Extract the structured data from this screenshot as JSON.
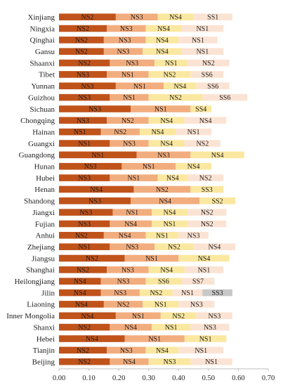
{
  "chart_data": {
    "type": "bar",
    "orientation": "horizontal",
    "stacked": true,
    "xlim": [
      0,
      0.7
    ],
    "x_ticks": [
      "0.00",
      "0.10",
      "0.20",
      "0.30",
      "0.40",
      "0.50",
      "0.60",
      "0.70"
    ],
    "grid": false,
    "legend": "none",
    "colors": [
      "#c0531a",
      "#f2ad7e",
      "#fbe8a0",
      "#fbe3d4",
      "#c8c8c8"
    ],
    "categories": [
      "Xinjiang",
      "Ningxia",
      "Qinghai",
      "Gansu",
      "Shaanxi",
      "Tibet",
      "Yunnan",
      "Guizhou",
      "Sichuan",
      "Chongqing",
      "Hainan",
      "Guangxi",
      "Guangdong",
      "Hunan",
      "Hubei",
      "Henan",
      "Shandong",
      "Jiangxi",
      "Fujian",
      "Anhui",
      "Zhejiang",
      "Jiangsu",
      "Shanghai",
      "Heilongjiang",
      "Jilin",
      "Liaoning",
      "Inner Mongolia",
      "Shanxi",
      "Hebei",
      "Tianjin",
      "Beijing"
    ],
    "bars": [
      {
        "segments": [
          {
            "label": "NS2",
            "value": 0.19
          },
          {
            "label": "NS3",
            "value": 0.14
          },
          {
            "label": "NS4",
            "value": 0.12
          },
          {
            "label": "SS1",
            "value": 0.13
          }
        ]
      },
      {
        "segments": [
          {
            "label": "NS2",
            "value": 0.16
          },
          {
            "label": "NS3",
            "value": 0.13
          },
          {
            "label": "NS4",
            "value": 0.12
          },
          {
            "label": "NS1",
            "value": 0.14
          }
        ]
      },
      {
        "segments": [
          {
            "label": "NS2",
            "value": 0.15
          },
          {
            "label": "NS3",
            "value": 0.14
          },
          {
            "label": "NS4",
            "value": 0.11
          },
          {
            "label": "NS1",
            "value": 0.13
          }
        ]
      },
      {
        "segments": [
          {
            "label": "NS2",
            "value": 0.15
          },
          {
            "label": "NS3",
            "value": 0.13
          },
          {
            "label": "NS4",
            "value": 0.13
          },
          {
            "label": "NS1",
            "value": 0.14
          }
        ]
      },
      {
        "segments": [
          {
            "label": "NS2",
            "value": 0.17
          },
          {
            "label": "NS3",
            "value": 0.15
          },
          {
            "label": "NS1",
            "value": 0.11
          },
          {
            "label": "NS2",
            "value": 0.14
          }
        ]
      },
      {
        "segments": [
          {
            "label": "NS3",
            "value": 0.16
          },
          {
            "label": "NS1",
            "value": 0.14
          },
          {
            "label": "NS2",
            "value": 0.14
          },
          {
            "label": "SS6",
            "value": 0.11
          }
        ]
      },
      {
        "segments": [
          {
            "label": "NS3",
            "value": 0.19
          },
          {
            "label": "NS1",
            "value": 0.16
          },
          {
            "label": "NS4",
            "value": 0.11
          },
          {
            "label": "SS6",
            "value": 0.11
          }
        ]
      },
      {
        "segments": [
          {
            "label": "NS3",
            "value": 0.17
          },
          {
            "label": "NS1",
            "value": 0.13
          },
          {
            "label": "NS2",
            "value": 0.18
          },
          {
            "label": "SS6",
            "value": 0.15
          }
        ]
      },
      {
        "segments": [
          {
            "label": "NS3",
            "value": 0.24
          },
          {
            "label": "NS1",
            "value": 0.2
          },
          {
            "label": "SS4",
            "value": 0.07
          }
        ]
      },
      {
        "segments": [
          {
            "label": "NS3",
            "value": 0.16
          },
          {
            "label": "NS2",
            "value": 0.14
          },
          {
            "label": "NS4",
            "value": 0.12
          },
          {
            "label": "NS4",
            "value": 0.14
          }
        ]
      },
      {
        "segments": [
          {
            "label": "NS1",
            "value": 0.14
          },
          {
            "label": "NS2",
            "value": 0.13
          },
          {
            "label": "NS4",
            "value": 0.12
          },
          {
            "label": "NS1",
            "value": 0.12
          }
        ]
      },
      {
        "segments": [
          {
            "label": "NS1",
            "value": 0.17
          },
          {
            "label": "NS3",
            "value": 0.13
          },
          {
            "label": "NS4",
            "value": 0.12
          },
          {
            "label": "NS2",
            "value": 0.12
          }
        ]
      },
      {
        "segments": [
          {
            "label": "NS1",
            "value": 0.26
          },
          {
            "label": "NS3",
            "value": 0.18
          },
          {
            "label": "NS4",
            "value": 0.18
          }
        ]
      },
      {
        "segments": [
          {
            "label": "NS3",
            "value": 0.21
          },
          {
            "label": "NS1",
            "value": 0.18
          },
          {
            "label": "NS4",
            "value": 0.12
          }
        ]
      },
      {
        "segments": [
          {
            "label": "NS3",
            "value": 0.17
          },
          {
            "label": "NS1",
            "value": 0.16
          },
          {
            "label": "NS4",
            "value": 0.1
          },
          {
            "label": "NS2",
            "value": 0.12
          }
        ]
      },
      {
        "segments": [
          {
            "label": "NS4",
            "value": 0.25
          },
          {
            "label": "NS2",
            "value": 0.19
          },
          {
            "label": "SS3",
            "value": 0.11
          }
        ]
      },
      {
        "segments": [
          {
            "label": "NS3",
            "value": 0.24
          },
          {
            "label": "NS4",
            "value": 0.23
          },
          {
            "label": "SS2",
            "value": 0.12
          }
        ]
      },
      {
        "segments": [
          {
            "label": "NS3",
            "value": 0.18
          },
          {
            "label": "NS1",
            "value": 0.13
          },
          {
            "label": "NS4",
            "value": 0.12
          },
          {
            "label": "NS2",
            "value": 0.13
          }
        ]
      },
      {
        "segments": [
          {
            "label": "NS3",
            "value": 0.17
          },
          {
            "label": "NS4",
            "value": 0.14
          },
          {
            "label": "NS1",
            "value": 0.12
          },
          {
            "label": "NS2",
            "value": 0.13
          }
        ]
      },
      {
        "segments": [
          {
            "label": "NS2",
            "value": 0.15
          },
          {
            "label": "NS4",
            "value": 0.14
          },
          {
            "label": "NS1",
            "value": 0.11
          },
          {
            "label": "NS3",
            "value": 0.1
          }
        ]
      },
      {
        "segments": [
          {
            "label": "NS1",
            "value": 0.17
          },
          {
            "label": "NS3",
            "value": 0.15
          },
          {
            "label": "NS2",
            "value": 0.13
          },
          {
            "label": "NS4",
            "value": 0.14
          }
        ]
      },
      {
        "segments": [
          {
            "label": "NS2",
            "value": 0.22
          },
          {
            "label": "NS1",
            "value": 0.18
          },
          {
            "label": "NS4",
            "value": 0.17
          }
        ]
      },
      {
        "segments": [
          {
            "label": "NS2",
            "value": 0.16
          },
          {
            "label": "NS3",
            "value": 0.14
          },
          {
            "label": "NS4",
            "value": 0.12
          },
          {
            "label": "NS1",
            "value": 0.13
          }
        ]
      },
      {
        "segments": [
          {
            "label": "NS4",
            "value": 0.14
          },
          {
            "label": "NS3",
            "value": 0.15
          },
          {
            "label": "SS6",
            "value": 0.12
          },
          {
            "label": "SS7",
            "value": 0.11
          }
        ]
      },
      {
        "segments": [
          {
            "label": "NS4",
            "value": 0.14
          },
          {
            "label": "NS3",
            "value": 0.13
          },
          {
            "label": "NS2",
            "value": 0.11
          },
          {
            "label": "NS1",
            "value": 0.1
          },
          {
            "label": "SS3",
            "value": 0.1
          }
        ]
      },
      {
        "segments": [
          {
            "label": "NS4",
            "value": 0.15
          },
          {
            "label": "NS2",
            "value": 0.13
          },
          {
            "label": "NS1",
            "value": 0.12
          },
          {
            "label": "NS3",
            "value": 0.12
          }
        ]
      },
      {
        "segments": [
          {
            "label": "NS4",
            "value": 0.19
          },
          {
            "label": "NS1",
            "value": 0.15
          },
          {
            "label": "NS2",
            "value": 0.12
          },
          {
            "label": "NS3",
            "value": 0.12
          }
        ]
      },
      {
        "segments": [
          {
            "label": "NS2",
            "value": 0.17
          },
          {
            "label": "NS4",
            "value": 0.14
          },
          {
            "label": "NS1",
            "value": 0.13
          },
          {
            "label": "NS3",
            "value": 0.13
          }
        ]
      },
      {
        "segments": [
          {
            "label": "NS4",
            "value": 0.22
          },
          {
            "label": "NS1",
            "value": 0.2
          },
          {
            "label": "NS1",
            "value": 0.14
          }
        ]
      },
      {
        "segments": [
          {
            "label": "NS2",
            "value": 0.16
          },
          {
            "label": "NS3",
            "value": 0.13
          },
          {
            "label": "NS4",
            "value": 0.11
          },
          {
            "label": "NS1",
            "value": 0.15
          }
        ]
      },
      {
        "segments": [
          {
            "label": "NS2",
            "value": 0.17
          },
          {
            "label": "NS4",
            "value": 0.13
          },
          {
            "label": "NS3",
            "value": 0.14
          },
          {
            "label": "NS1",
            "value": 0.14
          }
        ]
      }
    ]
  }
}
